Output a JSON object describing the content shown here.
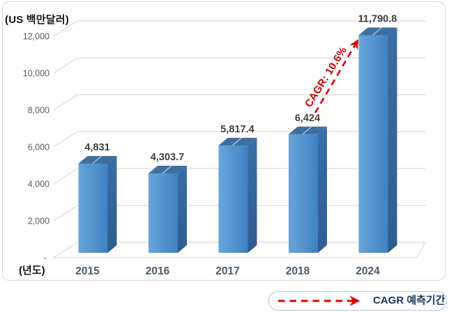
{
  "chart_data": {
    "type": "bar",
    "style": "3d-column",
    "unit_label": "(US 백만달러)",
    "x_axis_label": "(년도)",
    "categories": [
      "2015",
      "2016",
      "2017",
      "2018",
      "2024"
    ],
    "values": [
      4831,
      4303.7,
      5817.4,
      6424,
      11790.8
    ],
    "value_labels": [
      "4,831",
      "4,303.7",
      "5,817.4",
      "6,424",
      "11,790.8"
    ],
    "ylim": [
      0,
      12000
    ],
    "ytick_step": 2000,
    "ytick_labels": [
      "-",
      "2,000",
      "4,000",
      "6,000",
      "8,000",
      "10,000",
      "12,000"
    ],
    "grid": true,
    "annotation": {
      "text": "CAGR: 10.6%",
      "color": "#c40000",
      "arrow_style": "dashed",
      "arrow_color": "#d40000",
      "from_category": "2018",
      "to_category": "2024"
    },
    "colors": {
      "bar_front_light": "#68a5da",
      "bar_front_dark": "#3f82c2",
      "bar_side_top": "#3a6ea6",
      "bar_side_bottom": "#2d5c90",
      "bar_top": "#3f6fa0",
      "bar_top_notch": "#9cc3e6",
      "grid": "#d9d9d9",
      "tick_text": "#595959",
      "category_text": "#4a5a70",
      "value_text": "#3f3f3f"
    }
  },
  "legend": {
    "label": "CAGR 예측기간",
    "arrow_color": "#e00000",
    "border_color": "#a9c7e1",
    "text_color": "#17375e"
  }
}
